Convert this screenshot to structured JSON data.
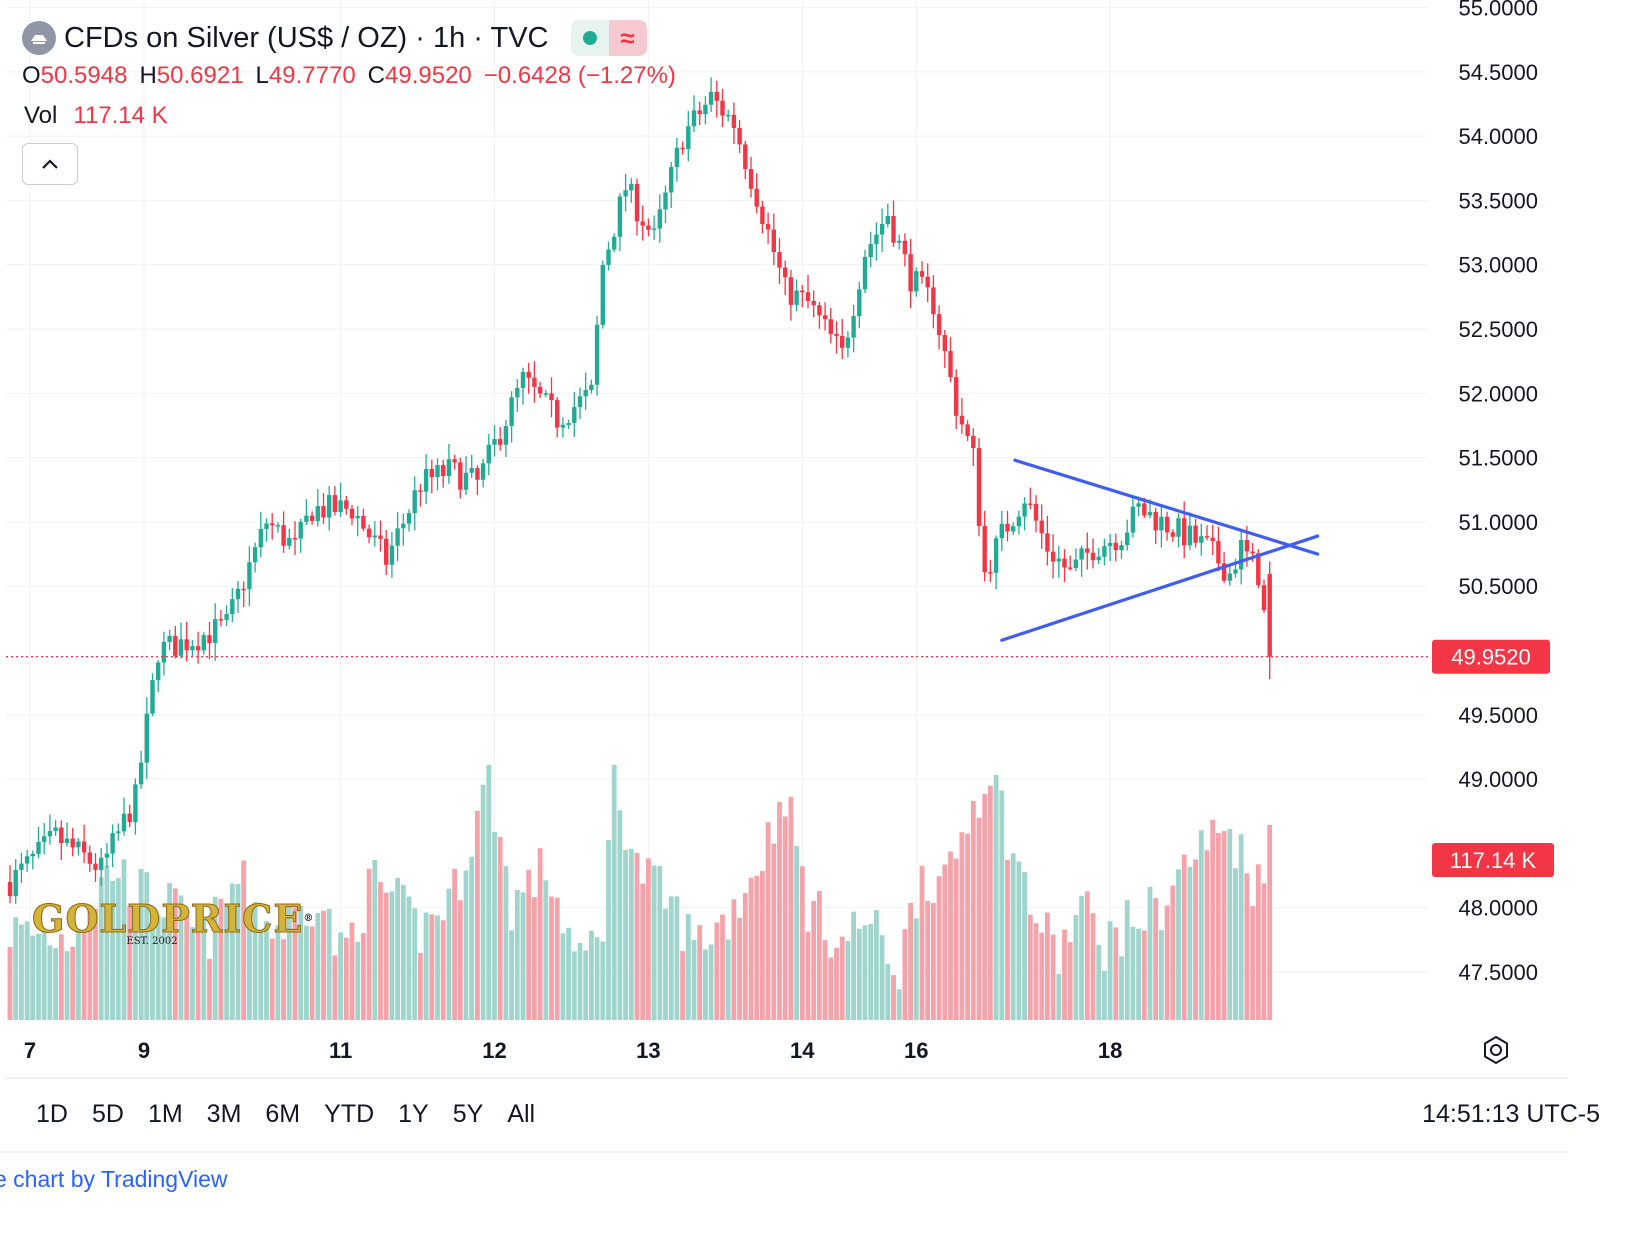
{
  "header": {
    "title": "CFDs on Silver (US$ / OZ) · 1h · TVC",
    "delay_glyph": "≈"
  },
  "ohlc": {
    "o_label": "O",
    "o_value": "50.5948",
    "h_label": "H",
    "h_value": "50.6921",
    "l_label": "L",
    "l_value": "49.7770",
    "c_label": "C",
    "c_value": "49.9520",
    "change": "−0.6428 (−1.27%)"
  },
  "volume": {
    "label": "Vol",
    "value": "117.14 K"
  },
  "logo": {
    "text": "GOLDPRICE",
    "est": "EST. 2002",
    "reg": "®"
  },
  "range_buttons": [
    "1D",
    "5D",
    "1M",
    "3M",
    "6M",
    "YTD",
    "1Y",
    "5Y",
    "All"
  ],
  "clock": "14:51:13 UTC-5",
  "footer": {
    "credit": "e chart by TradingView"
  },
  "colors": {
    "up": "#22ab94",
    "down": "#f23645",
    "up_vol": "#9fd5cc",
    "down_vol": "#f3a3a9",
    "trend": "#3f5ef0",
    "grid": "#f0f1f3"
  },
  "chart_data": {
    "type": "candlestick",
    "interval": "1h",
    "price_axis": {
      "ticks": [
        "55.0000",
        "54.5000",
        "54.0000",
        "53.5000",
        "53.0000",
        "52.5000",
        "52.0000",
        "51.5000",
        "51.0000",
        "50.5000",
        "49.5000",
        "49.0000",
        "48.0000",
        "47.5000"
      ],
      "tick_values": [
        55.0,
        54.5,
        54.0,
        53.5,
        53.0,
        52.5,
        52.0,
        51.5,
        51.0,
        50.5,
        49.5,
        49.0,
        48.0,
        47.5
      ],
      "range": [
        47.25,
        55.05
      ]
    },
    "time_axis": {
      "labels": [
        "7",
        "9",
        "11",
        "12",
        "13",
        "14",
        "16",
        "18"
      ],
      "label_slots": [
        3.5,
        23.5,
        58,
        85,
        112,
        139,
        159,
        193
      ]
    },
    "last_price": {
      "value": 49.952,
      "label": "49.9520"
    },
    "last_volume": {
      "label": "117.14 K"
    },
    "path": [
      [
        0,
        48.2
      ],
      [
        8,
        48.55
      ],
      [
        16,
        48.3
      ],
      [
        22,
        48.85
      ],
      [
        26,
        50.0
      ],
      [
        33,
        50.1
      ],
      [
        38,
        50.2
      ],
      [
        45,
        51.0
      ],
      [
        50,
        50.8
      ],
      [
        53,
        51.1
      ],
      [
        60,
        51.1
      ],
      [
        66,
        50.7
      ],
      [
        72,
        51.3
      ],
      [
        77,
        51.4
      ],
      [
        82,
        51.3
      ],
      [
        90,
        52.1
      ],
      [
        96,
        51.8
      ],
      [
        102,
        52.0
      ],
      [
        104,
        53.0
      ],
      [
        108,
        53.6
      ],
      [
        113,
        53.2
      ],
      [
        118,
        54.0
      ],
      [
        123,
        54.3
      ],
      [
        127,
        54.1
      ],
      [
        132,
        53.4
      ],
      [
        136,
        52.8
      ],
      [
        140,
        52.7
      ],
      [
        146,
        52.3
      ],
      [
        150,
        53.1
      ],
      [
        154,
        53.4
      ],
      [
        158,
        52.9
      ],
      [
        162,
        52.7
      ],
      [
        166,
        51.9
      ],
      [
        169,
        51.5
      ],
      [
        171,
        50.6
      ],
      [
        174,
        50.9
      ],
      [
        178,
        51.2
      ],
      [
        182,
        50.8
      ],
      [
        186,
        50.6
      ],
      [
        190,
        50.8
      ],
      [
        195,
        50.9
      ],
      [
        198,
        51.1
      ],
      [
        202,
        51.0
      ],
      [
        206,
        50.9
      ],
      [
        210,
        50.8
      ],
      [
        214,
        50.6
      ],
      [
        216,
        50.8
      ],
      [
        219,
        50.6
      ],
      [
        221,
        49.95
      ]
    ],
    "volume_path": [
      [
        0,
        0.35
      ],
      [
        10,
        0.32
      ],
      [
        18,
        0.6
      ],
      [
        23,
        0.5
      ],
      [
        28,
        0.45
      ],
      [
        34,
        0.3
      ],
      [
        40,
        0.55
      ],
      [
        46,
        0.35
      ],
      [
        50,
        0.4
      ],
      [
        54,
        0.5
      ],
      [
        58,
        0.25
      ],
      [
        64,
        0.55
      ],
      [
        72,
        0.35
      ],
      [
        78,
        0.5
      ],
      [
        84,
        0.95
      ],
      [
        88,
        0.45
      ],
      [
        94,
        0.6
      ],
      [
        100,
        0.2
      ],
      [
        104,
        0.4
      ],
      [
        106,
        0.95
      ],
      [
        110,
        0.6
      ],
      [
        116,
        0.45
      ],
      [
        120,
        0.3
      ],
      [
        126,
        0.4
      ],
      [
        132,
        0.65
      ],
      [
        136,
        0.9
      ],
      [
        140,
        0.45
      ],
      [
        146,
        0.3
      ],
      [
        150,
        0.4
      ],
      [
        156,
        0.2
      ],
      [
        160,
        0.6
      ],
      [
        164,
        0.5
      ],
      [
        168,
        0.8
      ],
      [
        172,
        1.0
      ],
      [
        176,
        0.65
      ],
      [
        180,
        0.4
      ],
      [
        184,
        0.25
      ],
      [
        188,
        0.45
      ],
      [
        192,
        0.3
      ],
      [
        198,
        0.4
      ],
      [
        202,
        0.45
      ],
      [
        206,
        0.6
      ],
      [
        210,
        0.7
      ],
      [
        214,
        0.75
      ],
      [
        218,
        0.55
      ],
      [
        221,
        0.68
      ]
    ],
    "triangle": {
      "upper": {
        "from": [
          176.3,
          51.48
        ],
        "to": [
          221,
          50.87
        ]
      },
      "lower": {
        "from": [
          174,
          50.08
        ],
        "to": [
          221,
          50.75
        ]
      }
    },
    "notes": ""
  }
}
